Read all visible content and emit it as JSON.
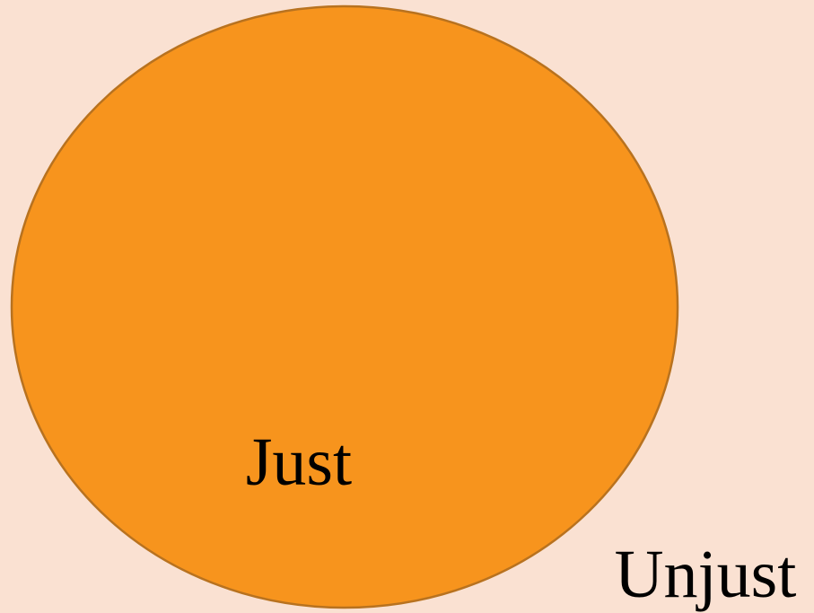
{
  "nodes": [
    {
      "label": "Just"
    },
    {
      "label": "Unjust"
    }
  ]
}
